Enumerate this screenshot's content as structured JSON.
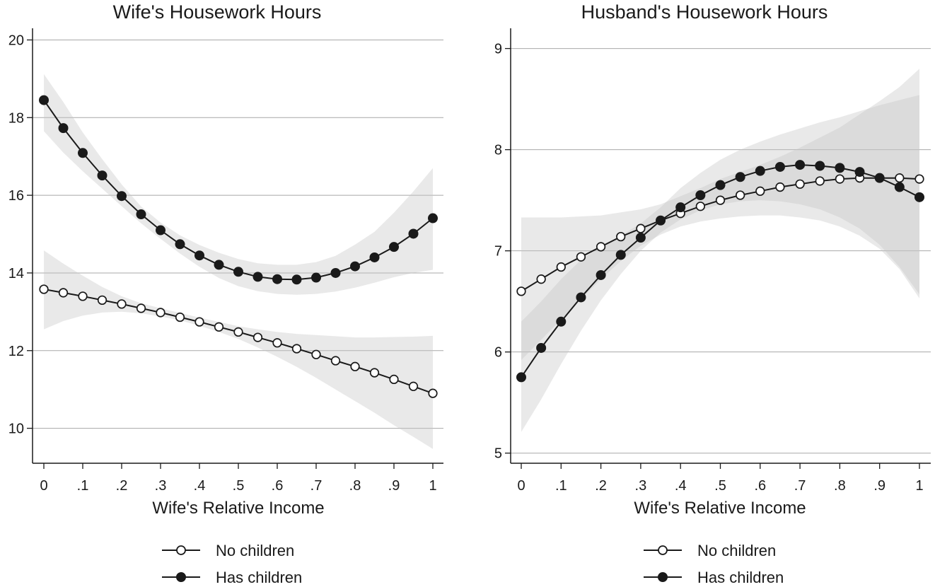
{
  "chart_data": [
    {
      "type": "line",
      "title": "Wife's Housework Hours",
      "xlabel": "Wife's Relative Income",
      "ylabel": "",
      "xlim": [
        0,
        1
      ],
      "ylim": [
        9.1,
        20.3
      ],
      "x_ticks": [
        0,
        0.1,
        0.2,
        0.3,
        0.4,
        0.5,
        0.6,
        0.7,
        0.8,
        0.9,
        1
      ],
      "x_tick_labels": [
        "0",
        ".1",
        ".2",
        ".3",
        ".4",
        ".5",
        ".6",
        ".7",
        ".8",
        ".9",
        "1"
      ],
      "y_ticks": [
        10,
        12,
        14,
        16,
        18,
        20
      ],
      "y_tick_labels": [
        "10",
        "12",
        "14",
        "16",
        "18",
        "20"
      ],
      "grid": "horizontal",
      "x": [
        0,
        0.05,
        0.1,
        0.15,
        0.2,
        0.25,
        0.3,
        0.35,
        0.4,
        0.45,
        0.5,
        0.55,
        0.6,
        0.65,
        0.7,
        0.75,
        0.8,
        0.85,
        0.9,
        0.95,
        1
      ],
      "series": [
        {
          "name": "No children",
          "marker": "hollow-circle",
          "values": [
            13.58,
            13.49,
            13.4,
            13.3,
            13.2,
            13.09,
            12.98,
            12.86,
            12.74,
            12.61,
            12.48,
            12.34,
            12.2,
            12.05,
            11.9,
            11.74,
            11.59,
            11.43,
            11.26,
            11.08,
            10.9
          ],
          "ci_lower": [
            12.55,
            12.76,
            12.9,
            12.98,
            13.0,
            12.96,
            12.88,
            12.78,
            12.64,
            12.48,
            12.3,
            12.08,
            11.84,
            11.58,
            11.3,
            11.0,
            10.7,
            10.4,
            10.08,
            9.78,
            9.47
          ],
          "ci_upper": [
            14.58,
            14.24,
            13.93,
            13.64,
            13.4,
            13.22,
            13.09,
            12.97,
            12.85,
            12.74,
            12.63,
            12.55,
            12.48,
            12.43,
            12.4,
            12.37,
            12.34,
            12.34,
            12.35,
            12.36,
            12.38
          ]
        },
        {
          "name": "Has children",
          "marker": "filled-circle",
          "values": [
            18.45,
            17.73,
            17.09,
            16.51,
            15.98,
            15.51,
            15.1,
            14.74,
            14.45,
            14.21,
            14.03,
            13.9,
            13.84,
            13.83,
            13.88,
            14.0,
            14.17,
            14.4,
            14.67,
            15.01,
            15.41
          ],
          "ci_lower": [
            17.65,
            17.1,
            16.62,
            16.17,
            15.72,
            15.28,
            14.88,
            14.5,
            14.16,
            13.87,
            13.66,
            13.53,
            13.46,
            13.44,
            13.46,
            13.52,
            13.62,
            13.75,
            13.89,
            14.0,
            14.08
          ],
          "ci_upper": [
            19.12,
            18.4,
            17.62,
            16.93,
            16.28,
            15.71,
            15.3,
            14.97,
            14.72,
            14.52,
            14.36,
            14.25,
            14.21,
            14.21,
            14.28,
            14.44,
            14.73,
            15.06,
            15.55,
            16.1,
            16.7
          ]
        }
      ]
    },
    {
      "type": "line",
      "title": "Husband's Housework Hours",
      "xlabel": "Wife's Relative Income",
      "ylabel": "",
      "xlim": [
        0,
        1
      ],
      "ylim": [
        4.9,
        9.2
      ],
      "x_ticks": [
        0,
        0.1,
        0.2,
        0.3,
        0.4,
        0.5,
        0.6,
        0.7,
        0.8,
        0.9,
        1
      ],
      "x_tick_labels": [
        "0",
        ".1",
        ".2",
        ".3",
        ".4",
        ".5",
        ".6",
        ".7",
        ".8",
        ".9",
        "1"
      ],
      "y_ticks": [
        5,
        6,
        7,
        8,
        9
      ],
      "y_tick_labels": [
        "5",
        "6",
        "7",
        "8",
        "9"
      ],
      "grid": "horizontal",
      "x": [
        0,
        0.05,
        0.1,
        0.15,
        0.2,
        0.25,
        0.3,
        0.35,
        0.4,
        0.45,
        0.5,
        0.55,
        0.6,
        0.65,
        0.7,
        0.75,
        0.8,
        0.85,
        0.9,
        0.95,
        1
      ],
      "series": [
        {
          "name": "No children",
          "marker": "hollow-circle",
          "values": [
            6.6,
            6.72,
            6.84,
            6.94,
            7.04,
            7.14,
            7.22,
            7.3,
            7.37,
            7.44,
            7.5,
            7.55,
            7.59,
            7.63,
            7.66,
            7.69,
            7.71,
            7.72,
            7.72,
            7.72,
            7.71
          ],
          "ci_lower": [
            5.92,
            6.12,
            6.32,
            6.52,
            6.72,
            6.9,
            7.05,
            7.16,
            7.24,
            7.29,
            7.32,
            7.34,
            7.35,
            7.35,
            7.33,
            7.3,
            7.24,
            7.15,
            7.02,
            6.82,
            6.53
          ],
          "ci_upper": [
            7.33,
            7.33,
            7.33,
            7.34,
            7.35,
            7.38,
            7.41,
            7.46,
            7.54,
            7.62,
            7.71,
            7.78,
            7.85,
            7.93,
            8.02,
            8.12,
            8.22,
            8.35,
            8.48,
            8.62,
            8.8
          ]
        },
        {
          "name": "Has children",
          "marker": "filled-circle",
          "values": [
            5.75,
            6.04,
            6.3,
            6.54,
            6.76,
            6.96,
            7.13,
            7.3,
            7.43,
            7.55,
            7.65,
            7.73,
            7.79,
            7.83,
            7.85,
            7.84,
            7.82,
            7.78,
            7.72,
            7.63,
            7.53
          ],
          "ci_lower": [
            5.21,
            5.53,
            5.88,
            6.21,
            6.51,
            6.77,
            7.0,
            7.18,
            7.31,
            7.4,
            7.46,
            7.49,
            7.5,
            7.49,
            7.46,
            7.41,
            7.33,
            7.22,
            7.06,
            6.84,
            6.57
          ],
          "ci_upper": [
            6.3,
            6.5,
            6.72,
            6.91,
            7.04,
            7.15,
            7.27,
            7.43,
            7.62,
            7.77,
            7.9,
            8.0,
            8.08,
            8.15,
            8.21,
            8.27,
            8.32,
            8.38,
            8.44,
            8.49,
            8.54
          ]
        }
      ]
    }
  ]
}
